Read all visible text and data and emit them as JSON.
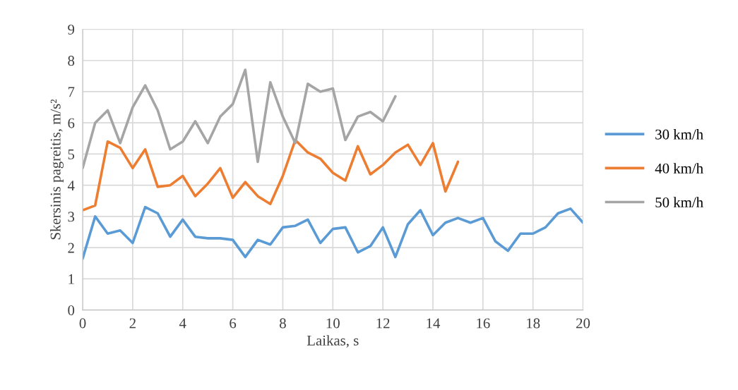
{
  "chart_data": {
    "type": "line",
    "xlabel": "Laikas, s",
    "ylabel": "Skersinis pagreitis, m/s²",
    "xlim": [
      0,
      20
    ],
    "xticks": [
      0,
      2,
      4,
      6,
      8,
      10,
      12,
      14,
      16,
      18,
      20
    ],
    "ylim": [
      0,
      9
    ],
    "yticks": [
      0,
      1,
      2,
      3,
      4,
      5,
      6,
      7,
      8,
      9
    ],
    "grid": true,
    "legend": "right",
    "marker": "none",
    "line_style": "solid",
    "series": [
      {
        "name": "30 km/h",
        "color": "#5b9bd5",
        "x": [
          0,
          0.5,
          1,
          1.5,
          2,
          2.5,
          3,
          3.5,
          4,
          4.5,
          5,
          5.5,
          6,
          6.5,
          7,
          7.5,
          8,
          8.5,
          9,
          9.5,
          10,
          10.5,
          11,
          11.5,
          12,
          12.5,
          13,
          13.5,
          14,
          14.5,
          15,
          15.5,
          16,
          16.5,
          17,
          17.5,
          18,
          18.5,
          19,
          19.5,
          20
        ],
        "values": [
          1.65,
          3.0,
          2.45,
          2.55,
          2.15,
          3.3,
          3.1,
          2.35,
          2.9,
          2.35,
          2.3,
          2.3,
          2.25,
          1.7,
          2.25,
          2.1,
          2.65,
          2.7,
          2.9,
          2.15,
          2.6,
          2.65,
          1.85,
          2.05,
          2.65,
          1.7,
          2.75,
          3.2,
          2.4,
          2.8,
          2.95,
          2.8,
          2.95,
          2.2,
          1.9,
          2.45,
          2.45,
          2.65,
          3.1,
          3.25,
          2.8
        ]
      },
      {
        "name": "40 km/h",
        "color": "#ed7d31",
        "x": [
          0,
          0.5,
          1,
          1.5,
          2,
          2.5,
          3,
          3.5,
          4,
          4.5,
          5,
          5.5,
          6,
          6.5,
          7,
          7.5,
          8,
          8.5,
          9,
          9.5,
          10,
          10.5,
          11,
          11.5,
          12,
          12.5,
          13,
          13.5,
          14,
          14.5,
          15
        ],
        "values": [
          3.2,
          3.35,
          5.4,
          5.2,
          4.55,
          5.15,
          3.95,
          4.0,
          4.3,
          3.65,
          4.05,
          4.55,
          3.6,
          4.1,
          3.65,
          3.4,
          4.3,
          5.45,
          5.05,
          4.85,
          4.4,
          4.15,
          5.25,
          4.35,
          4.65,
          5.05,
          5.3,
          4.65,
          5.35,
          3.8,
          4.75
        ]
      },
      {
        "name": "50 km/h",
        "color": "#a5a5a5",
        "x": [
          0,
          0.5,
          1,
          1.5,
          2,
          2.5,
          3,
          3.5,
          4,
          4.5,
          5,
          5.5,
          6,
          6.5,
          7,
          7.5,
          8,
          8.5,
          9,
          9.5,
          10,
          10.5,
          11,
          11.5,
          12,
          12.5
        ],
        "values": [
          4.55,
          6.0,
          6.4,
          5.35,
          6.5,
          7.2,
          6.4,
          5.15,
          5.4,
          6.05,
          5.35,
          6.2,
          6.6,
          7.7,
          4.75,
          7.3,
          6.2,
          5.35,
          7.25,
          7.0,
          7.1,
          5.45,
          6.2,
          6.35,
          6.05,
          6.85
        ]
      }
    ]
  }
}
